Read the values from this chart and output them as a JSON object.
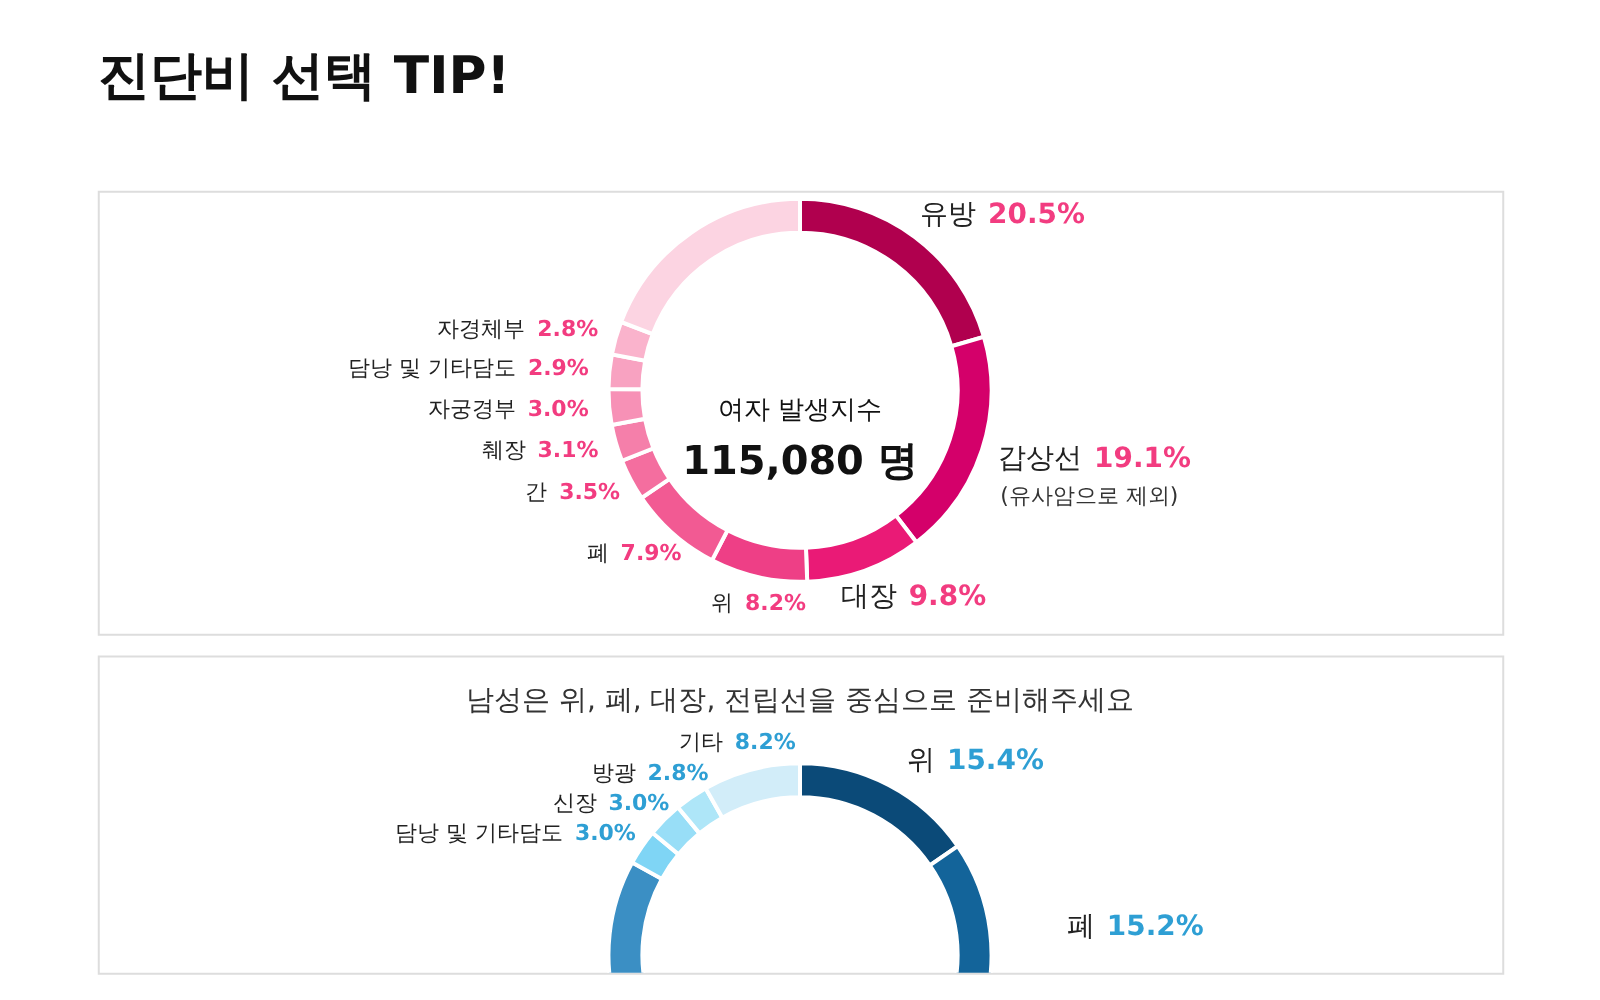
{
  "chart_data": [
    {
      "type": "donut",
      "title": "진단비 선택 TIP!",
      "categories": [
        "유방",
        "갑상선",
        "대장",
        "위",
        "폐",
        "간",
        "췌장",
        "자궁경부",
        "담낭 및 기타담도",
        "자경체부",
        null
      ],
      "values": [
        20.5,
        19.1,
        9.8,
        8.2,
        7.9,
        3.5,
        3.1,
        3.0,
        2.9,
        2.8,
        19.2
      ],
      "value_labels": [
        "20.5%",
        "19.1%",
        "9.8%",
        "8.2%",
        "7.9%",
        "3.5%",
        "3.1%",
        "3.0%",
        "2.9%",
        "2.8%",
        null
      ],
      "colors": [
        "#b0004e",
        "#d4006a",
        "#ea1a76",
        "#ee3f86",
        "#f25a93",
        "#f46e9f",
        "#f57faa",
        "#f791b6",
        "#f8a2c1",
        "#fab3cc",
        "#fcd4e2"
      ],
      "annotations": [
        "여자 발생지수",
        "115,080 명",
        {
          "text": "(유사암으로 제외)",
          "x": "갑상선"
        }
      ]
    },
    {
      "type": "donut",
      "title": "남성은 위, 폐, 대장, 전립선을 중심으로 준비해주세요",
      "categories": [
        "위",
        "폐",
        null,
        "담낭 및 기타담도",
        "신장",
        "방광",
        "기타"
      ],
      "values": [
        15.4,
        15.2,
        52.4,
        3.0,
        3.0,
        2.8,
        8.2
      ],
      "value_labels": [
        "15.4%",
        "15.2%",
        null,
        "3.0%",
        "3.0%",
        "2.8%",
        "8.2%"
      ],
      "colors": [
        "#0b4a78",
        "#13649a",
        "#3b8fc4",
        "#7fd5f5",
        "#98def7",
        "#aee6f8",
        "#d2edf9"
      ]
    }
  ]
}
